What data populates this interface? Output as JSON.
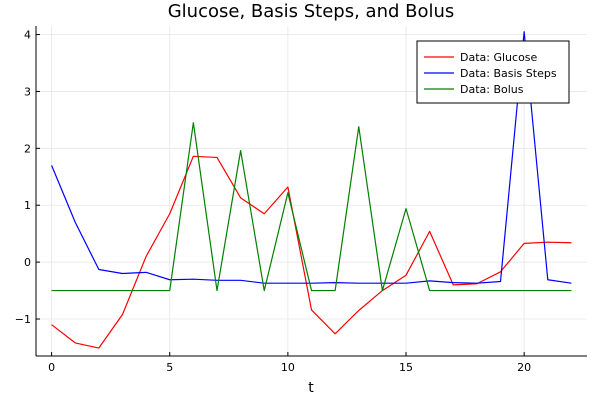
{
  "chart_data": {
    "type": "line",
    "title": "Glucose, Basis Steps, and Bolus",
    "xlabel": "t",
    "ylabel": "",
    "xlim": [
      -0.66,
      22.66
    ],
    "ylim": [
      -1.65,
      4.15
    ],
    "xticks": [
      0,
      5,
      10,
      15,
      20
    ],
    "yticks": [
      -1,
      0,
      1,
      2,
      3,
      4
    ],
    "xtick_labels": [
      "0",
      "5",
      "10",
      "15",
      "20"
    ],
    "ytick_labels": [
      "−1",
      "0",
      "1",
      "2",
      "3",
      "4"
    ],
    "grid": true,
    "legend_position": "top-right",
    "x": [
      0,
      1,
      2,
      3,
      4,
      5,
      6,
      7,
      8,
      9,
      10,
      11,
      12,
      13,
      14,
      15,
      16,
      17,
      18,
      19,
      20,
      21,
      22
    ],
    "series": [
      {
        "name": "Data: Glucose",
        "color": "#ff0000",
        "values": [
          -1.1,
          -1.42,
          -1.51,
          -0.92,
          0.1,
          0.85,
          1.86,
          1.84,
          1.13,
          0.85,
          1.32,
          -0.84,
          -1.26,
          -0.85,
          -0.5,
          -0.23,
          0.54,
          -0.4,
          -0.38,
          -0.17,
          0.33,
          0.35,
          0.34
        ]
      },
      {
        "name": "Data: Basis Steps",
        "color": "#0000ff",
        "values": [
          1.7,
          0.7,
          -0.13,
          -0.2,
          -0.18,
          -0.31,
          -0.3,
          -0.32,
          -0.32,
          -0.37,
          -0.37,
          -0.37,
          -0.36,
          -0.37,
          -0.37,
          -0.37,
          -0.33,
          -0.36,
          -0.37,
          -0.34,
          4.05,
          -0.31,
          -0.37
        ]
      },
      {
        "name": "Data: Bolus",
        "color": "#008000",
        "values": [
          -0.5,
          -0.5,
          -0.5,
          -0.5,
          -0.5,
          -0.5,
          2.45,
          -0.5,
          1.96,
          -0.5,
          1.22,
          -0.5,
          -0.5,
          2.38,
          -0.5,
          0.94,
          -0.5,
          -0.5,
          -0.5,
          -0.5,
          -0.5,
          -0.5,
          -0.5
        ]
      }
    ]
  }
}
